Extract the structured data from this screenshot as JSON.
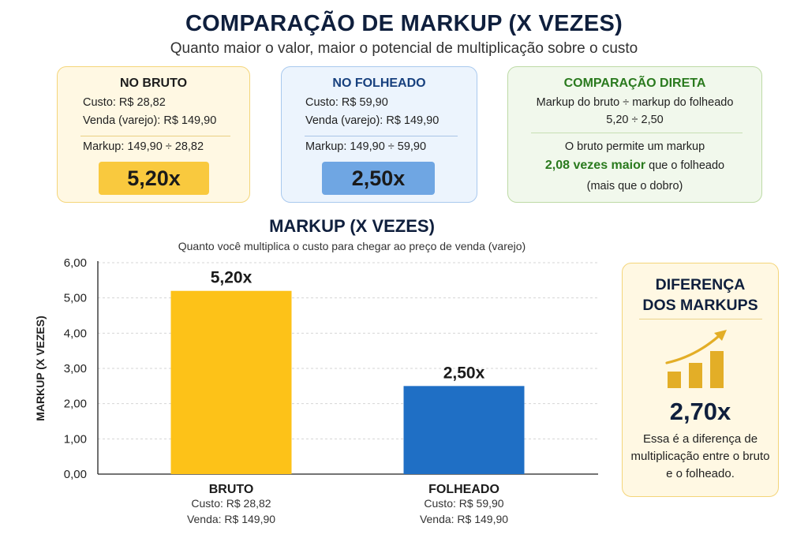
{
  "header": {
    "title": "COMPARAÇÃO DE MARKUP (X VEZES)",
    "subtitle": "Quanto maior o valor, maior o potencial de multiplicação sobre o custo"
  },
  "cards": {
    "bruto": {
      "title": "NO BRUTO",
      "custo": "Custo: R$ 28,82",
      "venda": "Venda (varejo): R$ 149,90",
      "markup_calc": "Markup: 149,90 ÷ 28,82",
      "markup_value": "5,20x"
    },
    "folheado": {
      "title": "NO FOLHEADO",
      "custo": "Custo: R$ 59,90",
      "venda": "Venda (varejo): R$ 149,90",
      "markup_calc": "Markup: 149,90 ÷ 59,90",
      "markup_value": "2,50x"
    },
    "comparacao": {
      "title": "COMPARAÇÃO DIRETA",
      "line1": "Markup do bruto ÷ markup do folheado",
      "line2": "5,20 ÷ 2,50",
      "line3": "O bruto permite um markup",
      "highlight": "2,08 vezes maior",
      "line4_rest": " que o folheado",
      "line5": "(mais que o dobro)"
    }
  },
  "side_card": {
    "title_line1": "DIFERENÇA",
    "title_line2": "DOS MARKUPS",
    "icon": "growth-chart-icon",
    "value": "2,70x",
    "description": "Essa é a diferença de multiplicação entre o bruto e o folheado."
  },
  "colors": {
    "bruto": "#FDC218",
    "folheado": "#1F6FC5",
    "accent_green": "#2A7A1E",
    "navy": "#0F1F3D"
  },
  "chart_data": {
    "type": "bar",
    "title": "MARKUP (X VEZES)",
    "subtitle": "Quanto você multiplica o custo para chegar ao preço de venda (varejo)",
    "ylabel": "MARKUP (X VEZES)",
    "xlabel": "",
    "ylim": [
      0,
      6
    ],
    "y_ticks": [
      "0,00",
      "1,00",
      "2,00",
      "3,00",
      "4,00",
      "5,00",
      "6,00"
    ],
    "grid": true,
    "categories": [
      "BRUTO",
      "FOLHEADO"
    ],
    "values": [
      5.2,
      2.5
    ],
    "data_labels": [
      "5,20x",
      "2,50x"
    ],
    "category_details": [
      [
        "Custo: R$ 28,82",
        "Venda: R$ 149,90"
      ],
      [
        "Custo: R$ 59,90",
        "Venda: R$ 149,90"
      ]
    ],
    "bar_colors": [
      "#FDC218",
      "#1F6FC5"
    ]
  }
}
